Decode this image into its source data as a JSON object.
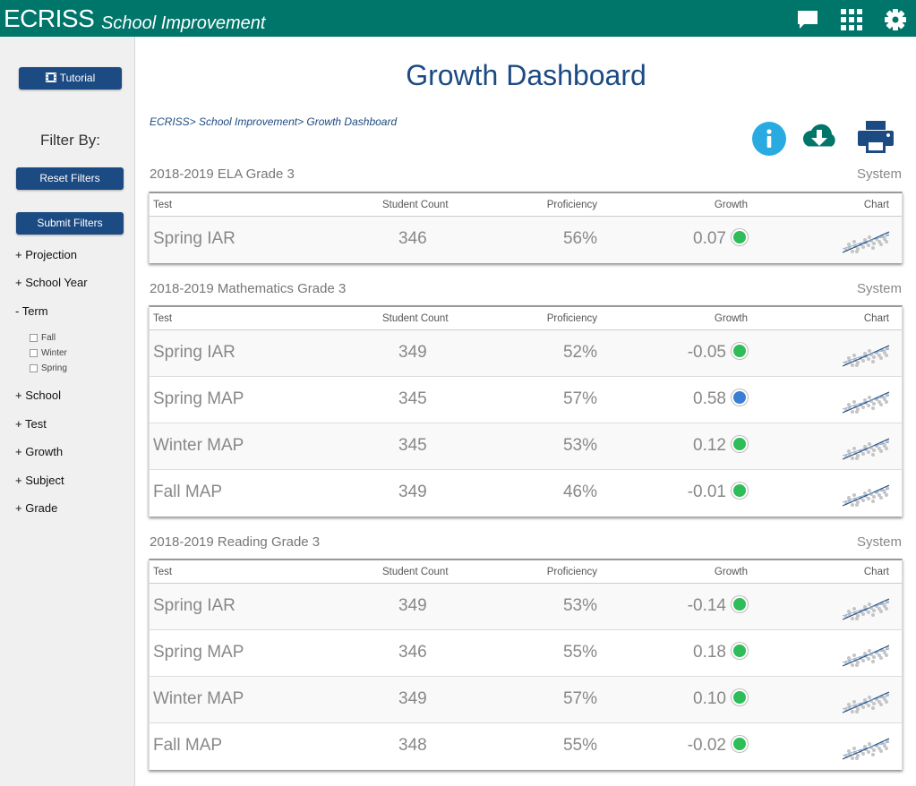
{
  "app": {
    "brand": "ECRISS",
    "module": "School Improvement"
  },
  "header_icons": [
    "chat-icon",
    "apps-grid-icon",
    "gear-icon"
  ],
  "sidebar": {
    "tutorial_label": "Tutorial",
    "filter_title": "Filter By:",
    "reset_label": "Reset Filters",
    "submit_label": "Submit Filters",
    "facets": [
      "+ Projection",
      "+ School Year",
      "- Term",
      "+ School",
      "+ Test",
      "+ Growth",
      "+ Subject",
      "+ Grade"
    ],
    "term_options": [
      "Fall",
      "Winter",
      "Spring"
    ]
  },
  "page": {
    "title": "Growth Dashboard",
    "breadcrumb": "ECRISS> School Improvement> Growth Dashboard"
  },
  "table_headers": {
    "test": "Test",
    "count": "Student Count",
    "proficiency": "Proficiency",
    "growth": "Growth",
    "chart": "Chart"
  },
  "colors": {
    "brand": "#00756a",
    "primary": "#1c4a82",
    "info": "#29abe2",
    "growth_green": "#2ebd59",
    "growth_blue": "#3b7fd4"
  },
  "sections": [
    {
      "title": "2018-2019 ELA Grade 3",
      "level": "System",
      "rows": [
        {
          "test": "Spring IAR",
          "count": "346",
          "proficiency": "56%",
          "growth": "0.07",
          "status": "green"
        }
      ]
    },
    {
      "title": "2018-2019 Mathematics Grade 3",
      "level": "System",
      "rows": [
        {
          "test": "Spring IAR",
          "count": "349",
          "proficiency": "52%",
          "growth": "-0.05",
          "status": "green"
        },
        {
          "test": "Spring MAP",
          "count": "345",
          "proficiency": "57%",
          "growth": "0.58",
          "status": "blue"
        },
        {
          "test": "Winter MAP",
          "count": "345",
          "proficiency": "53%",
          "growth": "0.12",
          "status": "green"
        },
        {
          "test": "Fall MAP",
          "count": "349",
          "proficiency": "46%",
          "growth": "-0.01",
          "status": "green"
        }
      ]
    },
    {
      "title": "2018-2019 Reading Grade 3",
      "level": "System",
      "rows": [
        {
          "test": "Spring IAR",
          "count": "349",
          "proficiency": "53%",
          "growth": "-0.14",
          "status": "green"
        },
        {
          "test": "Spring MAP",
          "count": "346",
          "proficiency": "55%",
          "growth": "0.18",
          "status": "green"
        },
        {
          "test": "Winter MAP",
          "count": "349",
          "proficiency": "57%",
          "growth": "0.10",
          "status": "green"
        },
        {
          "test": "Fall MAP",
          "count": "348",
          "proficiency": "55%",
          "growth": "-0.02",
          "status": "green"
        }
      ]
    }
  ]
}
